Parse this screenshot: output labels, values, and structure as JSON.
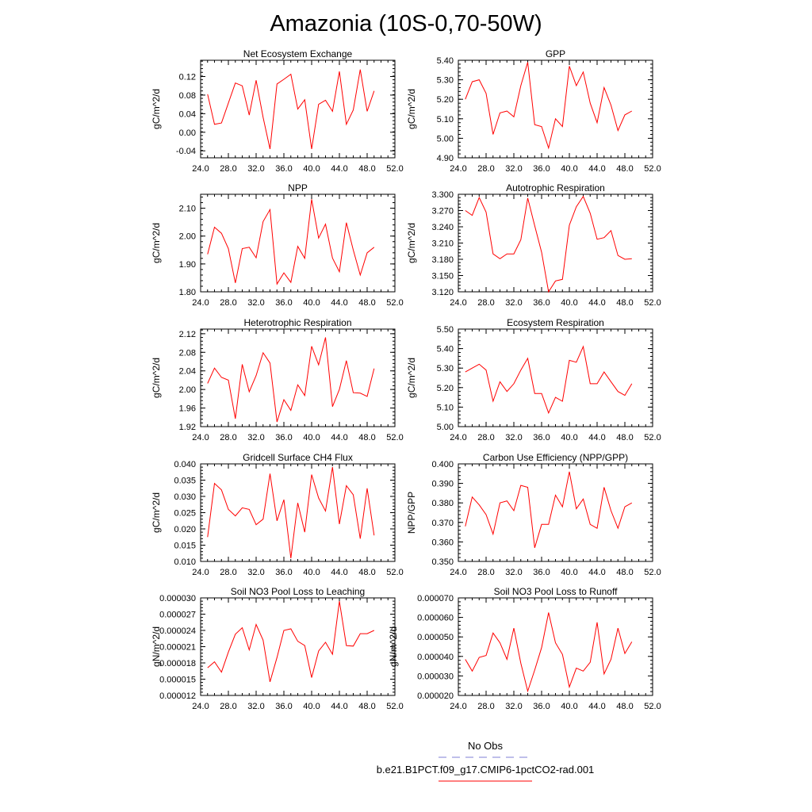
{
  "title": "Amazonia (10S-0,70-50W)",
  "legend": [
    {
      "label": "No Obs",
      "color": "#7f7fd6",
      "dash": true
    },
    {
      "label": "b.e21.B1PCT.f09_g17.CMIP6-1pctCO2-rad.001",
      "color": "#ff0000",
      "dash": false
    }
  ],
  "chart_data": [
    {
      "type": "line",
      "title": "Net Ecosystem Exchange",
      "ylabel": "gC/m^2/d",
      "xlim": [
        24,
        52
      ],
      "xticks": [
        "24.0",
        "28.0",
        "32.0",
        "36.0",
        "40.0",
        "44.0",
        "48.0",
        "52.0"
      ],
      "ylim": [
        -0.055,
        0.155
      ],
      "yticks": [
        "-0.04",
        "0.00",
        "0.04",
        "0.08",
        "0.12"
      ],
      "ytick_values": [
        -0.04,
        0,
        0.04,
        0.08,
        0.12
      ],
      "series": [
        {
          "color": "#ff0000",
          "x": [
            25,
            26,
            27,
            28,
            29,
            30,
            31,
            32,
            33,
            34,
            35,
            36,
            37,
            38,
            39,
            40,
            41,
            42,
            43,
            44,
            45,
            46,
            47,
            48,
            49
          ],
          "values": [
            0.082,
            0.017,
            0.02,
            0.063,
            0.106,
            0.1,
            0.037,
            0.112,
            0.032,
            -0.036,
            0.104,
            0.114,
            0.125,
            0.05,
            0.07,
            -0.036,
            0.06,
            0.069,
            0.045,
            0.131,
            0.017,
            0.048,
            0.135,
            0.045,
            0.089
          ]
        }
      ]
    },
    {
      "type": "line",
      "title": "GPP",
      "ylabel": "gC/m^2/d",
      "xlim": [
        24,
        52
      ],
      "xticks": [
        "24.0",
        "28.0",
        "32.0",
        "36.0",
        "40.0",
        "44.0",
        "48.0",
        "52.0"
      ],
      "ylim": [
        4.9,
        5.4
      ],
      "yticks": [
        "4.90",
        "5.00",
        "5.10",
        "5.20",
        "5.30",
        "5.40"
      ],
      "ytick_values": [
        4.9,
        5.0,
        5.1,
        5.2,
        5.3,
        5.4
      ],
      "series": [
        {
          "color": "#ff0000",
          "x": [
            25,
            26,
            27,
            28,
            29,
            30,
            31,
            32,
            33,
            34,
            35,
            36,
            37,
            38,
            39,
            40,
            41,
            42,
            43,
            44,
            45,
            46,
            47,
            48,
            49
          ],
          "values": [
            5.2,
            5.29,
            5.3,
            5.23,
            5.02,
            5.13,
            5.14,
            5.11,
            5.27,
            5.39,
            5.07,
            5.06,
            4.95,
            5.1,
            5.06,
            5.37,
            5.27,
            5.34,
            5.18,
            5.08,
            5.26,
            5.17,
            5.04,
            5.12,
            5.14
          ]
        }
      ]
    },
    {
      "type": "line",
      "title": "NPP",
      "ylabel": "gC/m^2/d",
      "xlim": [
        24,
        52
      ],
      "xticks": [
        "24.0",
        "28.0",
        "32.0",
        "36.0",
        "40.0",
        "44.0",
        "48.0",
        "52.0"
      ],
      "ylim": [
        1.8,
        2.15
      ],
      "yticks": [
        "1.80",
        "1.90",
        "2.00",
        "2.10"
      ],
      "ytick_values": [
        1.8,
        1.9,
        2.0,
        2.1
      ],
      "series": [
        {
          "color": "#ff0000",
          "x": [
            25,
            26,
            27,
            28,
            29,
            30,
            31,
            32,
            33,
            34,
            35,
            36,
            37,
            38,
            39,
            40,
            41,
            42,
            43,
            44,
            45,
            46,
            47,
            48,
            49
          ],
          "values": [
            1.935,
            2.032,
            2.01,
            1.955,
            1.832,
            1.955,
            1.96,
            1.922,
            2.052,
            2.095,
            1.828,
            1.868,
            1.834,
            1.963,
            1.92,
            2.132,
            1.993,
            2.043,
            1.921,
            1.872,
            2.048,
            1.95,
            1.86,
            1.94,
            1.96
          ]
        }
      ]
    },
    {
      "type": "line",
      "title": "Autotrophic Respiration",
      "ylabel": "gC/m^2/d",
      "xlim": [
        24,
        52
      ],
      "xticks": [
        "24.0",
        "28.0",
        "32.0",
        "36.0",
        "40.0",
        "44.0",
        "48.0",
        "52.0"
      ],
      "ylim": [
        3.12,
        3.3
      ],
      "yticks": [
        "3.120",
        "3.150",
        "3.180",
        "3.210",
        "3.240",
        "3.270",
        "3.300"
      ],
      "ytick_values": [
        3.12,
        3.15,
        3.18,
        3.21,
        3.24,
        3.27,
        3.3
      ],
      "series": [
        {
          "color": "#ff0000",
          "x": [
            25,
            26,
            27,
            28,
            29,
            30,
            31,
            32,
            33,
            34,
            35,
            36,
            37,
            38,
            39,
            40,
            41,
            42,
            43,
            44,
            45,
            46,
            47,
            48,
            49
          ],
          "values": [
            3.27,
            3.261,
            3.294,
            3.267,
            3.19,
            3.181,
            3.19,
            3.19,
            3.216,
            3.293,
            3.242,
            3.193,
            3.12,
            3.14,
            3.143,
            3.243,
            3.277,
            3.296,
            3.265,
            3.217,
            3.22,
            3.233,
            3.187,
            3.18,
            3.181
          ]
        }
      ]
    },
    {
      "type": "line",
      "title": "Heterotrophic Respiration",
      "ylabel": "gC/m^2/d",
      "xlim": [
        24,
        52
      ],
      "xticks": [
        "24.0",
        "28.0",
        "32.0",
        "36.0",
        "40.0",
        "44.0",
        "48.0",
        "52.0"
      ],
      "ylim": [
        1.92,
        2.13
      ],
      "yticks": [
        "1.92",
        "1.96",
        "2.00",
        "2.04",
        "2.08",
        "2.12"
      ],
      "ytick_values": [
        1.92,
        1.96,
        2.0,
        2.04,
        2.08,
        2.12
      ],
      "series": [
        {
          "color": "#ff0000",
          "x": [
            25,
            26,
            27,
            28,
            29,
            30,
            31,
            32,
            33,
            34,
            35,
            36,
            37,
            38,
            39,
            40,
            41,
            42,
            43,
            44,
            45,
            46,
            47,
            48,
            49
          ],
          "values": [
            2.013,
            2.046,
            2.026,
            2.02,
            1.937,
            2.054,
            1.995,
            2.03,
            2.079,
            2.057,
            1.93,
            1.978,
            1.955,
            2.01,
            1.987,
            2.093,
            2.053,
            2.112,
            1.963,
            2.0,
            2.062,
            1.993,
            1.992,
            1.985,
            2.045
          ]
        }
      ]
    },
    {
      "type": "line",
      "title": "Ecosystem Respiration",
      "ylabel": "gC/m^2/d",
      "xlim": [
        24,
        52
      ],
      "xticks": [
        "24.0",
        "28.0",
        "32.0",
        "36.0",
        "40.0",
        "44.0",
        "48.0",
        "52.0"
      ],
      "ylim": [
        5.0,
        5.5
      ],
      "yticks": [
        "5.00",
        "5.10",
        "5.20",
        "5.30",
        "5.40",
        "5.50"
      ],
      "ytick_values": [
        5.0,
        5.1,
        5.2,
        5.3,
        5.4,
        5.5
      ],
      "series": [
        {
          "color": "#ff0000",
          "x": [
            25,
            26,
            27,
            28,
            29,
            30,
            31,
            32,
            33,
            34,
            35,
            36,
            37,
            38,
            39,
            40,
            41,
            42,
            43,
            44,
            45,
            46,
            47,
            48,
            49
          ],
          "values": [
            5.28,
            5.3,
            5.32,
            5.29,
            5.13,
            5.23,
            5.18,
            5.22,
            5.29,
            5.35,
            5.17,
            5.17,
            5.07,
            5.15,
            5.13,
            5.34,
            5.33,
            5.41,
            5.22,
            5.22,
            5.28,
            5.23,
            5.18,
            5.16,
            5.22
          ]
        }
      ]
    },
    {
      "type": "line",
      "title": "Gridcell Surface CH4 Flux",
      "ylabel": "gC/m^2/d",
      "xlim": [
        24,
        52
      ],
      "xticks": [
        "24.0",
        "28.0",
        "32.0",
        "36.0",
        "40.0",
        "44.0",
        "48.0",
        "52.0"
      ],
      "ylim": [
        0.01,
        0.04
      ],
      "yticks": [
        "0.010",
        "0.015",
        "0.020",
        "0.025",
        "0.030",
        "0.035",
        "0.040"
      ],
      "ytick_values": [
        0.01,
        0.015,
        0.02,
        0.025,
        0.03,
        0.035,
        0.04
      ],
      "series": [
        {
          "color": "#ff0000",
          "x": [
            25,
            26,
            27,
            28,
            29,
            30,
            31,
            32,
            33,
            34,
            35,
            36,
            37,
            38,
            39,
            40,
            41,
            42,
            43,
            44,
            45,
            46,
            47,
            48,
            49
          ],
          "values": [
            0.0175,
            0.034,
            0.032,
            0.026,
            0.024,
            0.0265,
            0.026,
            0.0213,
            0.023,
            0.037,
            0.0225,
            0.029,
            0.011,
            0.028,
            0.019,
            0.0367,
            0.0295,
            0.0255,
            0.039,
            0.0215,
            0.0333,
            0.0305,
            0.017,
            0.0325,
            0.018
          ]
        }
      ]
    },
    {
      "type": "line",
      "title": "Carbon Use Efficiency (NPP/GPP)",
      "ylabel": "NPP/GPP",
      "xlim": [
        24,
        52
      ],
      "xticks": [
        "24.0",
        "28.0",
        "32.0",
        "36.0",
        "40.0",
        "44.0",
        "48.0",
        "52.0"
      ],
      "ylim": [
        0.35,
        0.4
      ],
      "yticks": [
        "0.350",
        "0.360",
        "0.370",
        "0.380",
        "0.390",
        "0.400"
      ],
      "ytick_values": [
        0.35,
        0.36,
        0.37,
        0.38,
        0.39,
        0.4
      ],
      "series": [
        {
          "color": "#ff0000",
          "x": [
            25,
            26,
            27,
            28,
            29,
            30,
            31,
            32,
            33,
            34,
            35,
            36,
            37,
            38,
            39,
            40,
            41,
            42,
            43,
            44,
            45,
            46,
            47,
            48,
            49
          ],
          "values": [
            0.368,
            0.383,
            0.379,
            0.374,
            0.364,
            0.38,
            0.381,
            0.376,
            0.389,
            0.388,
            0.357,
            0.369,
            0.369,
            0.384,
            0.378,
            0.396,
            0.377,
            0.382,
            0.369,
            0.367,
            0.388,
            0.376,
            0.367,
            0.378,
            0.38
          ]
        }
      ]
    },
    {
      "type": "line",
      "title": "Soil NO3 Pool Loss to Leaching",
      "ylabel": "gN/m^2/d",
      "xlim": [
        24,
        52
      ],
      "xticks": [
        "24.0",
        "28.0",
        "32.0",
        "36.0",
        "40.0",
        "44.0",
        "48.0",
        "52.0"
      ],
      "ylim": [
        1.2e-05,
        3e-05
      ],
      "yticks": [
        "0.000012",
        "0.000015",
        "0.000018",
        "0.000021",
        "0.000024",
        "0.000027",
        "0.000030"
      ],
      "ytick_values": [
        1.2e-05,
        1.5e-05,
        1.8e-05,
        2.1e-05,
        2.4e-05,
        2.7e-05,
        3e-05
      ],
      "series": [
        {
          "color": "#ff0000",
          "x": [
            25,
            26,
            27,
            28,
            29,
            30,
            31,
            32,
            33,
            34,
            35,
            36,
            37,
            38,
            39,
            40,
            41,
            42,
            43,
            44,
            45,
            46,
            47,
            48,
            49
          ],
          "values": [
            1.71e-05,
            1.82e-05,
            1.63e-05,
            2e-05,
            2.33e-05,
            2.45e-05,
            2.04e-05,
            2.51e-05,
            2.22e-05,
            1.45e-05,
            1.9e-05,
            2.4e-05,
            2.43e-05,
            2.2e-05,
            2.12e-05,
            1.53e-05,
            2.02e-05,
            2.18e-05,
            1.96e-05,
            2.94e-05,
            2.12e-05,
            2.11e-05,
            2.34e-05,
            2.34e-05,
            2.4e-05
          ]
        }
      ]
    },
    {
      "type": "line",
      "title": "Soil NO3 Pool Loss to Runoff",
      "ylabel": "gN/m^2/d",
      "xlim": [
        24,
        52
      ],
      "xticks": [
        "24.0",
        "28.0",
        "32.0",
        "36.0",
        "40.0",
        "44.0",
        "48.0",
        "52.0"
      ],
      "ylim": [
        2e-05,
        7e-05
      ],
      "yticks": [
        "0.000020",
        "0.000030",
        "0.000040",
        "0.000050",
        "0.000060",
        "0.000070"
      ],
      "ytick_values": [
        2e-05,
        3e-05,
        4e-05,
        5e-05,
        6e-05,
        7e-05
      ],
      "series": [
        {
          "color": "#ff0000",
          "x": [
            25,
            26,
            27,
            28,
            29,
            30,
            31,
            32,
            33,
            34,
            35,
            36,
            37,
            38,
            39,
            40,
            41,
            42,
            43,
            44,
            45,
            46,
            47,
            48,
            49
          ],
          "values": [
            3.85e-05,
            3.25e-05,
            3.95e-05,
            4.05e-05,
            5.2e-05,
            4.7e-05,
            3.85e-05,
            5.45e-05,
            3.65e-05,
            2.22e-05,
            3.3e-05,
            4.45e-05,
            6.25e-05,
            4.7e-05,
            4.1e-05,
            2.43e-05,
            3.4e-05,
            3.25e-05,
            3.7e-05,
            5.75e-05,
            3.1e-05,
            3.85e-05,
            5.45e-05,
            4.15e-05,
            4.75e-05
          ]
        }
      ]
    }
  ]
}
